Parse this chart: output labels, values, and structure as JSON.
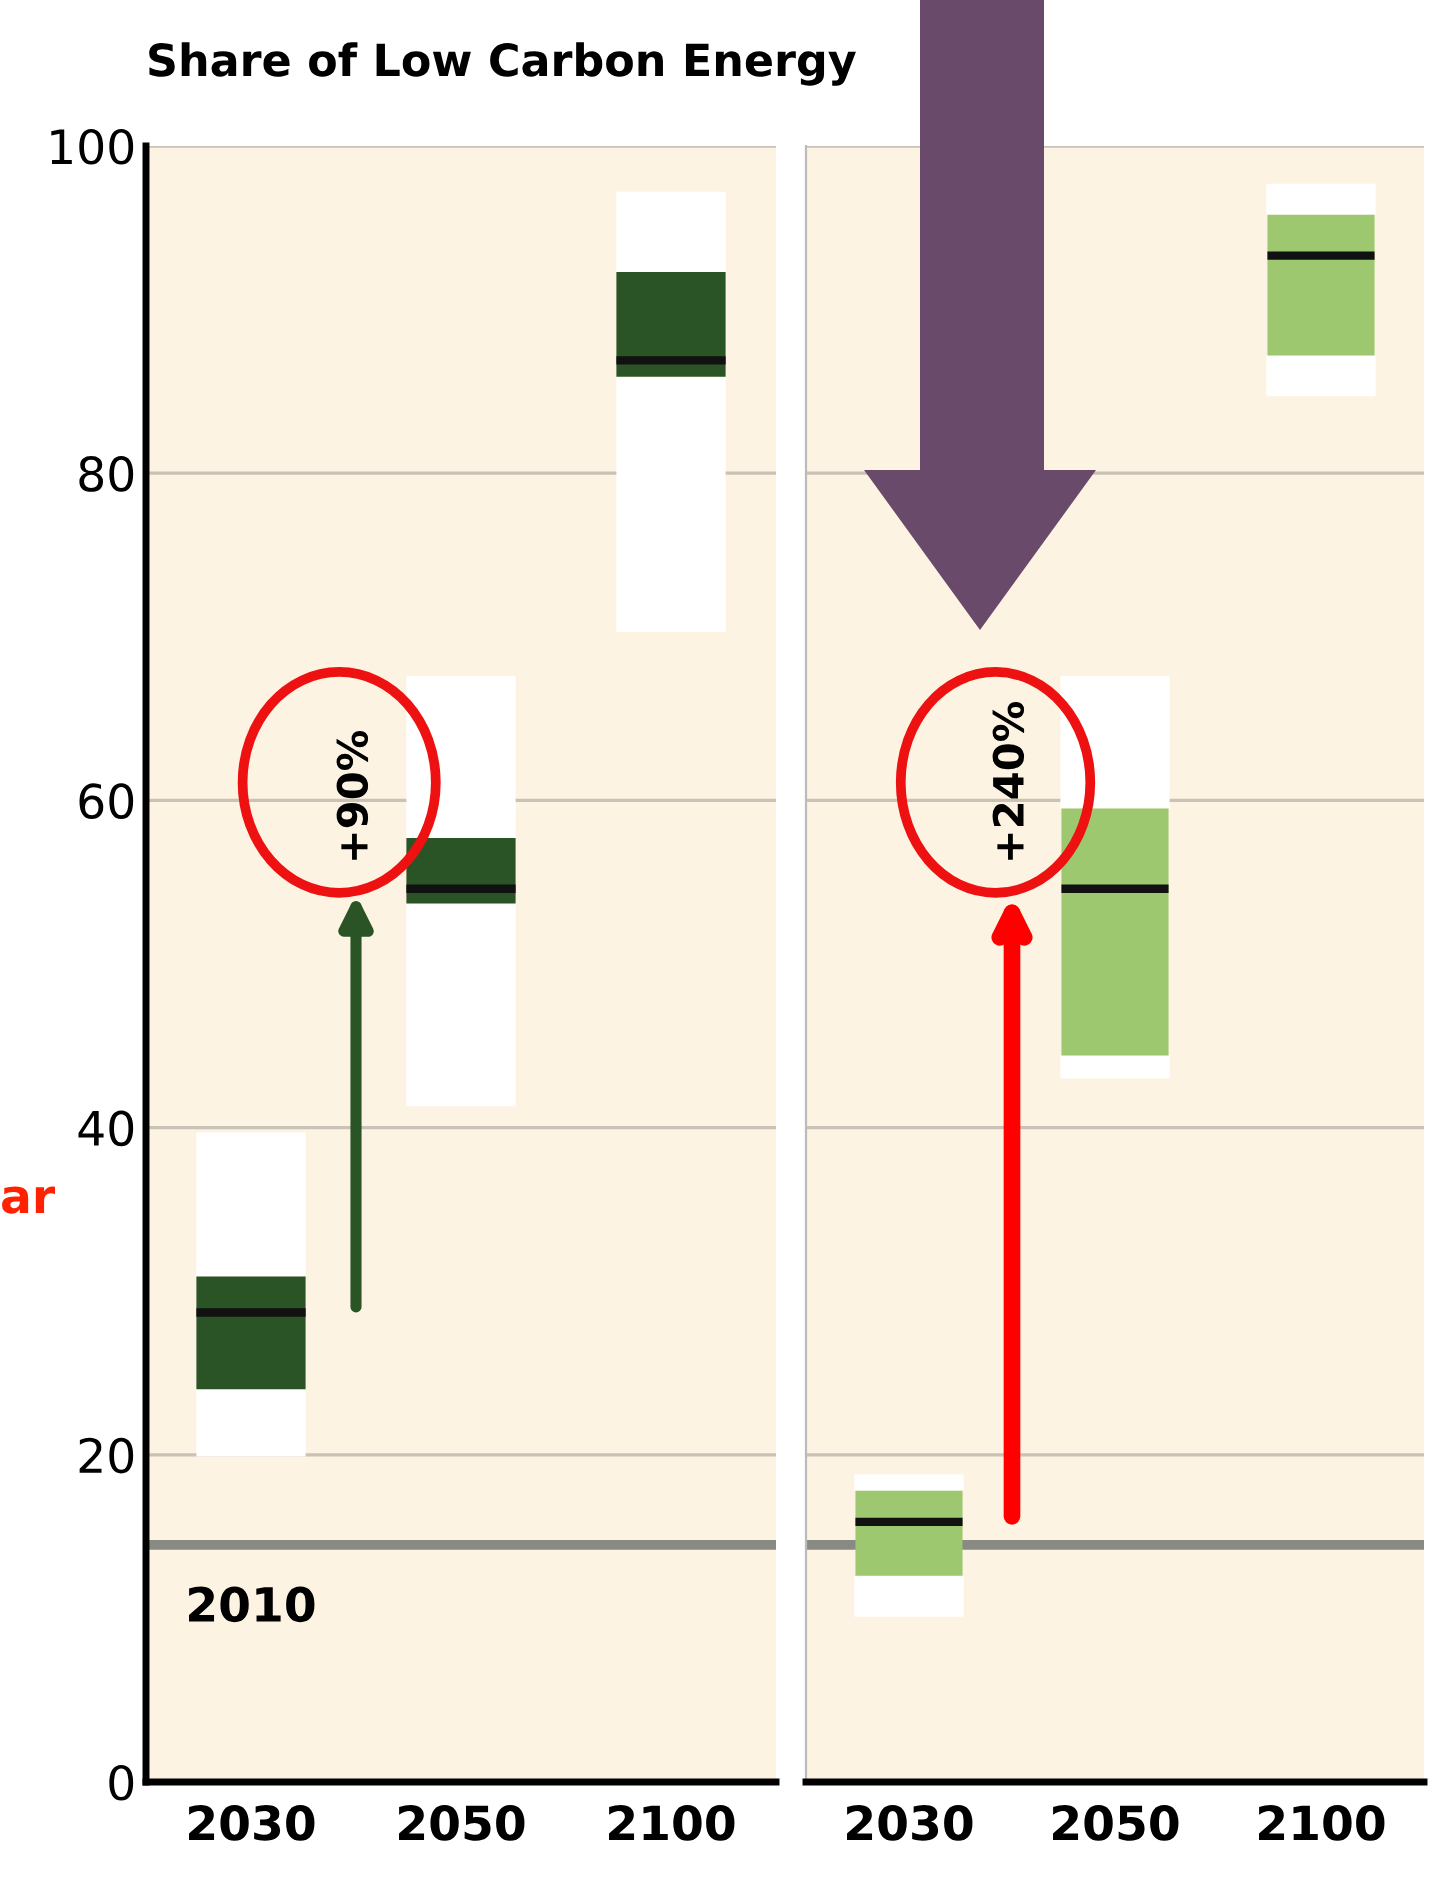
{
  "chart_data": [
    {
      "type": "box",
      "title": "Share of Low Carbon Energy",
      "categories": [
        "2030",
        "2050",
        "2100"
      ],
      "series": [
        {
          "color": "#2a5426",
          "boxes": [
            {
              "low": 19.9,
              "q1": 24.0,
              "median": 28.7,
              "q3": 30.9,
              "high": 39.7
            },
            {
              "low": 41.3,
              "q1": 53.7,
              "median": 54.6,
              "q3": 57.7,
              "high": 67.6
            },
            {
              "low": 70.3,
              "q1": 85.9,
              "median": 86.9,
              "q3": 92.3,
              "high": 97.2
            }
          ]
        }
      ],
      "ylim": [
        0,
        100
      ],
      "yticks": [
        0,
        20,
        40,
        60,
        80,
        100
      ],
      "grid": "y",
      "ref_lines": [
        {
          "axis": "y",
          "value": 14.5,
          "color": "#8a8a85"
        }
      ],
      "annotations": [
        "+90%",
        "ar",
        {
          "text": "2010",
          "x": "2030",
          "y": 14.5
        }
      ]
    },
    {
      "type": "box",
      "categories": [
        "2030",
        "2050",
        "2100"
      ],
      "series": [
        {
          "color": "#9dc870",
          "boxes": [
            {
              "low": 10.1,
              "q1": 12.6,
              "median": 15.9,
              "q3": 17.8,
              "high": 18.8
            },
            {
              "low": 43.0,
              "q1": 44.4,
              "median": 54.6,
              "q3": 59.5,
              "high": 67.6
            },
            {
              "low": 84.7,
              "q1": 87.2,
              "median": 93.3,
              "q3": 95.8,
              "high": 97.7
            }
          ]
        }
      ],
      "ylim": [
        0,
        100
      ],
      "yticks": [
        0,
        20,
        40,
        60,
        80,
        100
      ],
      "grid": "y",
      "tick_labels": "x",
      "ref_lines": [
        {
          "axis": "y",
          "value": 14.5,
          "color": "#8a8a85"
        }
      ],
      "annotations": [
        "+240%"
      ]
    }
  ]
}
